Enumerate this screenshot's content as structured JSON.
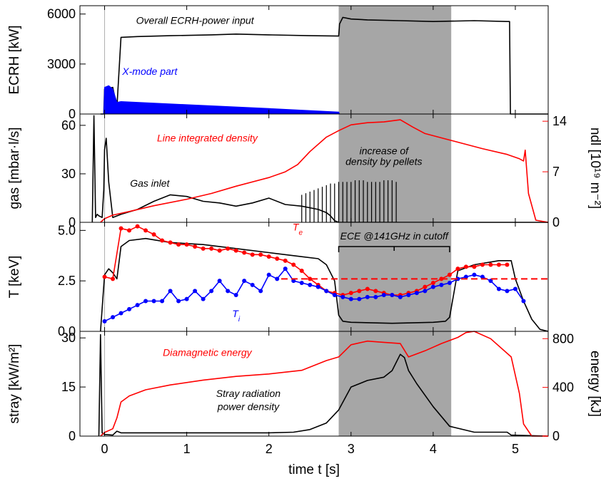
{
  "colors": {
    "black": "#000000",
    "red": "#ff0000",
    "blue": "#0000ff",
    "shade": "#a6a6a6"
  },
  "x_axis": {
    "label": "time t [s]",
    "range": [
      -0.3,
      5.4
    ],
    "ticks": [
      0,
      1,
      2,
      3,
      4,
      5
    ],
    "tick_labels": [
      "0",
      "1",
      "2",
      "3",
      "4",
      "5"
    ]
  },
  "chart_data": [
    {
      "type": "line",
      "panel": "ecrh",
      "ylabel": "ECRH [kW]",
      "ylim": [
        0,
        6500
      ],
      "yticks": [
        0,
        3000,
        6000
      ],
      "ytick_labels": [
        "0",
        "3000",
        "6000"
      ],
      "shaded_x_range": [
        2.85,
        4.22
      ],
      "annotations": [
        {
          "text": "Overall ECRH-power input",
          "x": 1.1,
          "y": 5400,
          "color": "#000000"
        },
        {
          "text": "X-mode part",
          "x": 0.55,
          "y": 2350,
          "color": "#0000ff"
        }
      ],
      "series": [
        {
          "color": "#000000",
          "x": [
            -0.05,
            -0.01,
            0.0,
            0.1,
            0.15,
            0.2,
            0.4,
            0.8,
            1.3,
            1.6,
            2.0,
            2.5,
            2.85,
            2.86,
            2.9,
            3.0,
            3.2,
            3.6,
            4.0,
            4.5,
            4.9,
            4.93,
            4.94,
            5.4
          ],
          "y": [
            0,
            0,
            1500,
            1600,
            400,
            4600,
            4650,
            4700,
            4750,
            4800,
            4750,
            4700,
            4680,
            5400,
            5800,
            5700,
            5650,
            5600,
            5550,
            5600,
            5550,
            5550,
            0,
            0
          ]
        },
        {
          "color": "#0000ff",
          "fill": true,
          "x": [
            -0.01,
            0.0,
            0.05,
            0.1,
            0.15,
            0.2,
            1.0,
            2.0,
            2.85,
            2.86
          ],
          "y": [
            0,
            1600,
            1700,
            1500,
            700,
            750,
            560,
            330,
            120,
            0
          ]
        }
      ]
    },
    {
      "type": "line",
      "panel": "gas",
      "ylabel": "gas [mbar·l/s]",
      "ylim": [
        0,
        67
      ],
      "yticks": [
        0,
        30,
        60
      ],
      "ytick_labels": [
        "0",
        "30",
        "60"
      ],
      "y2label": "ndl [10¹⁹ m⁻²]",
      "y2lim": [
        0,
        15
      ],
      "y2ticks": [
        0,
        7,
        14
      ],
      "y2tick_labels": [
        "0",
        "7",
        "14"
      ],
      "shaded_x_range": [
        2.85,
        4.22
      ],
      "annotations": [
        {
          "text": "Line integrated density",
          "x": 1.25,
          "y": 50,
          "color": "#ff0000"
        },
        {
          "text": "increase of",
          "x": 3.4,
          "y": 42,
          "color": "#000000"
        },
        {
          "text": "density by pellets",
          "x": 3.4,
          "y": 35.5,
          "color": "#000000"
        },
        {
          "text": "Gas inlet",
          "x": 0.55,
          "y": 22,
          "color": "#000000"
        }
      ],
      "series": [
        {
          "color": "#000000",
          "axis": "left",
          "x": [
            -0.15,
            -0.13,
            -0.11,
            -0.09,
            -0.07,
            -0.03,
            -0.01,
            0.0,
            0.02,
            0.05,
            0.1,
            0.2,
            0.4,
            0.6,
            0.8,
            1.0,
            1.2,
            1.4,
            1.6,
            1.8,
            2.0,
            2.2,
            2.4,
            2.6,
            2.7,
            2.75,
            2.8,
            2.85,
            3.0,
            3.5,
            4.0,
            4.5,
            5.0,
            5.4
          ],
          "y": [
            0,
            66,
            3,
            5,
            4,
            3,
            20,
            45,
            52,
            25,
            3,
            5,
            8,
            13,
            17,
            16,
            13,
            12,
            10,
            12,
            15,
            11,
            10,
            8,
            6,
            4,
            1,
            0,
            0,
            0,
            0,
            0,
            0,
            0
          ]
        },
        {
          "color": "#000000",
          "axis": "left",
          "kind": "spikes",
          "x": [
            2.4,
            2.45,
            2.5,
            2.55,
            2.6,
            2.65,
            2.7,
            2.75,
            2.8,
            2.85,
            2.9,
            2.95,
            3.0,
            3.05,
            3.1,
            3.15,
            3.2,
            3.25,
            3.3,
            3.35,
            3.4,
            3.45,
            3.5,
            3.55
          ],
          "y": [
            17,
            18,
            19,
            20,
            21,
            22,
            23,
            24,
            24,
            25,
            25,
            25,
            25,
            26,
            26,
            26,
            25,
            25,
            25,
            25,
            26,
            26,
            26,
            25
          ]
        },
        {
          "color": "#ff0000",
          "axis": "right",
          "x": [
            -0.05,
            0.0,
            0.1,
            0.3,
            0.6,
            1.0,
            1.3,
            1.6,
            2.0,
            2.2,
            2.35,
            2.5,
            2.7,
            2.85,
            3.0,
            3.2,
            3.4,
            3.6,
            3.75,
            3.9,
            4.2,
            4.6,
            4.9,
            5.05,
            5.1,
            5.12,
            5.16,
            5.25,
            5.4
          ],
          "y": [
            0,
            0.5,
            1.0,
            1.5,
            2.3,
            3.2,
            4.0,
            5.0,
            6.2,
            7.0,
            8.0,
            9.8,
            11.8,
            12.7,
            13.5,
            13.8,
            13.9,
            14.2,
            13.2,
            12.3,
            11.4,
            10.2,
            9.4,
            8.8,
            8.5,
            10.0,
            4.0,
            0.3,
            0
          ]
        }
      ]
    },
    {
      "type": "line",
      "panel": "temperature",
      "ylabel": "T [keV]",
      "ylim": [
        0,
        5.4
      ],
      "yticks": [
        0.0,
        2.5,
        5.0
      ],
      "ytick_labels": [
        "0.0",
        "2.5",
        "5.0"
      ],
      "shaded_x_range": [
        2.85,
        4.22
      ],
      "cutoff_level": 2.6,
      "bracket": {
        "x_start": 2.85,
        "x_end": 4.2,
        "y": 4.2,
        "text": "ECE @141GHz in cutoff"
      },
      "annotations": [
        {
          "text": "T",
          "sub": "e",
          "x": 2.35,
          "y": 5.0,
          "color": "#ff0000"
        },
        {
          "text": "T",
          "sub": "i",
          "x": 1.6,
          "y": 0.7,
          "color": "#0000ff"
        }
      ],
      "series": [
        {
          "color": "#000000",
          "x": [
            -0.05,
            0.0,
            0.05,
            0.1,
            0.15,
            0.2,
            0.3,
            0.5,
            0.8,
            1.2,
            1.6,
            2.0,
            2.4,
            2.6,
            2.7,
            2.8,
            2.85,
            2.9,
            3.0,
            3.5,
            4.0,
            4.15,
            4.2,
            4.3,
            4.5,
            4.8,
            4.95,
            5.0,
            5.1,
            5.2,
            5.3,
            5.4
          ],
          "y": [
            0,
            2.8,
            3.1,
            2.9,
            2.6,
            4.2,
            4.5,
            4.6,
            4.4,
            4.3,
            4.1,
            3.9,
            3.7,
            3.6,
            3.3,
            2.5,
            0.8,
            0.5,
            0.45,
            0.4,
            0.45,
            0.5,
            0.7,
            3.0,
            3.3,
            3.5,
            3.5,
            2.6,
            1.5,
            0.6,
            0.1,
            0
          ]
        },
        {
          "color": "#ff0000",
          "markers": true,
          "x": [
            0.0,
            0.1,
            0.2,
            0.3,
            0.4,
            0.5,
            0.6,
            0.7,
            0.8,
            0.9,
            1.0,
            1.1,
            1.2,
            1.3,
            1.4,
            1.5,
            1.6,
            1.7,
            1.8,
            1.9,
            2.0,
            2.1,
            2.2,
            2.3,
            2.4,
            2.5,
            2.6,
            2.7,
            2.8,
            2.9,
            3.0,
            3.1,
            3.2,
            3.3,
            3.4,
            3.5,
            3.6,
            3.7,
            3.8,
            3.9,
            4.0,
            4.1,
            4.2,
            4.3,
            4.4,
            4.5,
            4.6,
            4.7,
            4.8,
            4.9
          ],
          "y": [
            2.7,
            2.6,
            5.1,
            5.0,
            5.2,
            5.0,
            4.8,
            4.5,
            4.4,
            4.3,
            4.3,
            4.2,
            4.1,
            4.1,
            4.0,
            4.1,
            4.0,
            3.9,
            3.8,
            3.8,
            3.7,
            3.6,
            3.5,
            3.3,
            3.0,
            2.6,
            2.3,
            2.0,
            1.9,
            1.8,
            1.9,
            2.0,
            2.1,
            2.0,
            1.9,
            1.8,
            1.8,
            1.9,
            2.0,
            2.2,
            2.4,
            2.6,
            2.8,
            3.1,
            3.2,
            3.2,
            3.3,
            3.3,
            3.3,
            3.3
          ]
        },
        {
          "color": "#0000ff",
          "markers": true,
          "x": [
            0.0,
            0.1,
            0.2,
            0.3,
            0.4,
            0.5,
            0.6,
            0.7,
            0.8,
            0.9,
            1.0,
            1.1,
            1.2,
            1.3,
            1.4,
            1.5,
            1.6,
            1.7,
            1.8,
            1.9,
            2.0,
            2.1,
            2.2,
            2.3,
            2.4,
            2.5,
            2.6,
            2.7,
            2.8,
            2.9,
            3.0,
            3.1,
            3.2,
            3.3,
            3.4,
            3.5,
            3.6,
            3.7,
            3.8,
            3.9,
            4.0,
            4.1,
            4.2,
            4.3,
            4.4,
            4.5,
            4.6,
            4.7,
            4.8,
            4.9,
            5.0,
            5.1
          ],
          "y": [
            0.5,
            0.7,
            0.9,
            1.1,
            1.3,
            1.5,
            1.5,
            1.5,
            2.0,
            1.5,
            1.6,
            2.0,
            1.6,
            2.0,
            2.5,
            2.0,
            1.8,
            2.5,
            2.3,
            2.0,
            2.8,
            2.6,
            3.1,
            2.5,
            2.4,
            2.3,
            2.2,
            2.0,
            1.8,
            1.7,
            1.6,
            1.6,
            1.7,
            1.7,
            1.8,
            1.8,
            1.7,
            1.8,
            1.9,
            2.0,
            2.2,
            2.3,
            2.4,
            2.6,
            2.7,
            2.8,
            2.7,
            2.5,
            2.1,
            2.0,
            2.1,
            1.5
          ]
        }
      ]
    },
    {
      "type": "line",
      "panel": "stray",
      "ylabel": "stray [kW/m²]",
      "ylim": [
        0,
        32
      ],
      "yticks": [
        0,
        15,
        30
      ],
      "ytick_labels": [
        "0",
        "15",
        "30"
      ],
      "y2label": "energy [kJ]",
      "y2lim": [
        0,
        860
      ],
      "y2ticks": [
        0,
        400,
        800
      ],
      "y2tick_labels": [
        "0",
        "400",
        "800"
      ],
      "shaded_x_range": [
        2.85,
        4.22
      ],
      "annotations": [
        {
          "text": "Diamagnetic energy",
          "x": 1.25,
          "y": 24.5,
          "color": "#ff0000"
        },
        {
          "text": "Stray radiation",
          "x": 1.75,
          "y": 12.0,
          "color": "#000000"
        },
        {
          "text": "power density",
          "x": 1.75,
          "y": 8.0,
          "color": "#000000"
        }
      ],
      "series": [
        {
          "color": "#000000",
          "x": [
            -0.07,
            -0.05,
            -0.03,
            0.0,
            0.1,
            0.15,
            0.2,
            0.5,
            1.0,
            1.5,
            2.0,
            2.3,
            2.5,
            2.7,
            2.85,
            3.0,
            3.2,
            3.4,
            3.5,
            3.6,
            3.65,
            3.7,
            3.8,
            4.0,
            4.2,
            4.5,
            4.9,
            4.95,
            5.4
          ],
          "y": [
            0,
            31,
            1,
            0.5,
            0.3,
            1.5,
            1.0,
            1.0,
            1.0,
            1.0,
            1.0,
            1.2,
            2.0,
            4.0,
            8.0,
            15.0,
            17.0,
            18.0,
            20.0,
            25.0,
            24.0,
            20.0,
            16.0,
            9.0,
            3.0,
            1.2,
            1.2,
            0.3,
            0
          ]
        },
        {
          "color": "#ff0000",
          "axis": "right",
          "x": [
            -0.05,
            0.0,
            0.1,
            0.15,
            0.2,
            0.3,
            0.5,
            0.8,
            1.2,
            1.6,
            2.0,
            2.4,
            2.7,
            2.85,
            3.0,
            3.2,
            3.4,
            3.6,
            3.7,
            3.9,
            4.1,
            4.3,
            4.4,
            4.5,
            4.7,
            4.95,
            5.05,
            5.1,
            5.2,
            5.4
          ],
          "y": [
            0,
            30,
            60,
            150,
            280,
            330,
            380,
            420,
            460,
            490,
            510,
            540,
            620,
            650,
            750,
            780,
            770,
            760,
            650,
            700,
            760,
            810,
            850,
            860,
            800,
            650,
            350,
            100,
            0,
            0
          ]
        }
      ]
    }
  ]
}
